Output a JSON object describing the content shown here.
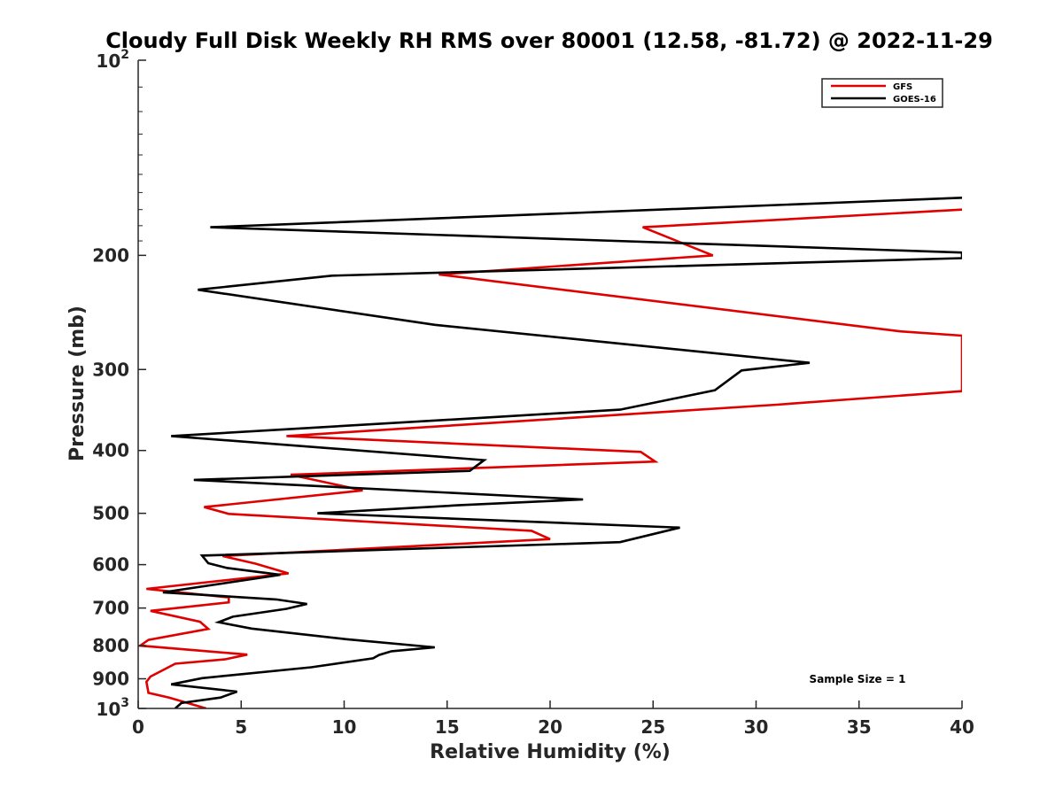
{
  "chart_data": {
    "type": "line",
    "title": "Cloudy Full Disk Weekly RH RMS over 80001 (12.58, -81.72) @ 2022-11-29",
    "xlabel": "Relative Humidity (%)",
    "ylabel": "Pressure (mb)",
    "xlim": [
      0,
      40
    ],
    "ylim": [
      100,
      1000
    ],
    "y_scale": "log",
    "y_direction": "reversed",
    "grid": false,
    "legend_position": "top-right",
    "x_ticks": [
      "0",
      "5",
      "10",
      "15",
      "20",
      "25",
      "30",
      "35",
      "40"
    ],
    "y_ticks": [
      {
        "value": 100,
        "base": "10",
        "exp": "2"
      },
      {
        "value": 200,
        "label": "200"
      },
      {
        "value": 300,
        "label": "300"
      },
      {
        "value": 400,
        "label": "400"
      },
      {
        "value": 500,
        "label": "500"
      },
      {
        "value": 600,
        "label": "600"
      },
      {
        "value": 700,
        "label": "700"
      },
      {
        "value": 800,
        "label": "800"
      },
      {
        "value": 900,
        "label": "900"
      },
      {
        "value": 1000,
        "base": "10",
        "exp": "3"
      }
    ],
    "annotation": "Sample Size = 1",
    "series": [
      {
        "name": "GFS",
        "color": "#e00000",
        "points": [
          [
            40,
            170
          ],
          [
            24.5,
            181
          ],
          [
            27.9,
            200
          ],
          [
            14.6,
            214
          ],
          [
            37,
            262
          ],
          [
            40,
            266
          ],
          [
            40,
            324
          ],
          [
            31,
            340
          ],
          [
            7.2,
            380
          ],
          [
            24.4,
            402
          ],
          [
            25.1,
            416
          ],
          [
            7.4,
            436
          ],
          [
            10.9,
            461
          ],
          [
            3.2,
            489
          ],
          [
            4.4,
            501
          ],
          [
            19.1,
            532
          ],
          [
            20,
            548
          ],
          [
            4.1,
            582
          ],
          [
            5.7,
            598
          ],
          [
            7.3,
            619
          ],
          [
            0.4,
            654
          ],
          [
            4.4,
            674
          ],
          [
            4.4,
            686
          ],
          [
            0.6,
            707
          ],
          [
            3,
            735
          ],
          [
            3.4,
            754
          ],
          [
            0.5,
            784
          ],
          [
            0.1,
            800
          ],
          [
            5.3,
            826
          ],
          [
            4.2,
            840
          ],
          [
            1.8,
            853
          ],
          [
            0.6,
            893
          ],
          [
            0.4,
            910
          ],
          [
            0.5,
            946
          ],
          [
            1.5,
            962
          ],
          [
            3.3,
            1000
          ]
        ]
      },
      {
        "name": "GOES-16",
        "color": "#000000",
        "points": [
          [
            40,
            163
          ],
          [
            3.5,
            181
          ],
          [
            40,
            198
          ],
          [
            40,
            202
          ],
          [
            9.4,
            215
          ],
          [
            2.9,
            226
          ],
          [
            14.4,
            256
          ],
          [
            32.6,
            293
          ],
          [
            29.3,
            301
          ],
          [
            28,
            323
          ],
          [
            23.4,
            346
          ],
          [
            1.6,
            380
          ],
          [
            16.8,
            414
          ],
          [
            16.1,
            430
          ],
          [
            2.7,
            444
          ],
          [
            21.6,
            476
          ],
          [
            15.5,
            486
          ],
          [
            8.7,
            500
          ],
          [
            26.3,
            526
          ],
          [
            23.4,
            554
          ],
          [
            3.1,
            581
          ],
          [
            3.4,
            597
          ],
          [
            4.3,
            607
          ],
          [
            6.9,
            622
          ],
          [
            1.2,
            662
          ],
          [
            6.7,
            679
          ],
          [
            8.2,
            690
          ],
          [
            7.2,
            702
          ],
          [
            4.6,
            722
          ],
          [
            3.9,
            736
          ],
          [
            5.5,
            753
          ],
          [
            10.1,
            782
          ],
          [
            14.4,
            805
          ],
          [
            12.3,
            816
          ],
          [
            11.7,
            827
          ],
          [
            11.4,
            837
          ],
          [
            8.4,
            864
          ],
          [
            3.1,
            898
          ],
          [
            1.6,
            918
          ],
          [
            4.8,
            942
          ],
          [
            4,
            962
          ],
          [
            2.1,
            981
          ],
          [
            1.8,
            1000
          ]
        ]
      }
    ]
  }
}
